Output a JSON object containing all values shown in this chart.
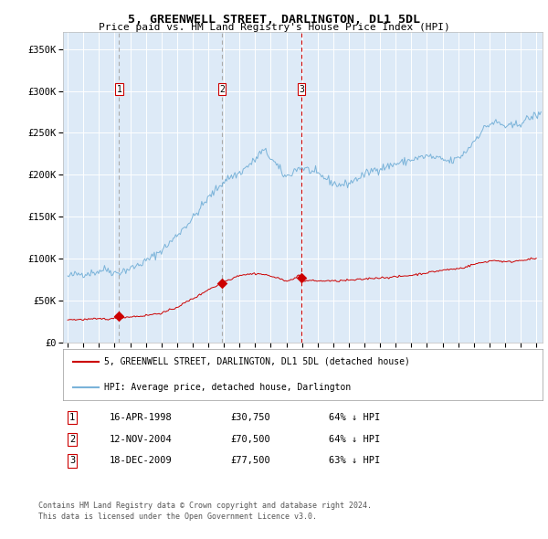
{
  "title": "5, GREENWELL STREET, DARLINGTON, DL1 5DL",
  "subtitle": "Price paid vs. HM Land Registry's House Price Index (HPI)",
  "legend_line1": "5, GREENWELL STREET, DARLINGTON, DL1 5DL (detached house)",
  "legend_line2": "HPI: Average price, detached house, Darlington",
  "footer1": "Contains HM Land Registry data © Crown copyright and database right 2024.",
  "footer2": "This data is licensed under the Open Government Licence v3.0.",
  "transactions": [
    {
      "num": 1,
      "date": "16-APR-1998",
      "price": 30750,
      "pct": "64%",
      "dir": "↓",
      "year": 1998.29
    },
    {
      "num": 2,
      "date": "12-NOV-2004",
      "price": 70500,
      "pct": "64%",
      "dir": "↓",
      "year": 2004.87
    },
    {
      "num": 3,
      "date": "18-DEC-2009",
      "price": 77500,
      "pct": "63%",
      "dir": "↓",
      "year": 2009.96
    }
  ],
  "hpi_color": "#7ab3d9",
  "price_color": "#cc0000",
  "bg_color": "#ddeaf7",
  "grid_color": "#ffffff",
  "ylim": [
    0,
    370000
  ],
  "xlim_start": 1994.7,
  "xlim_end": 2025.4,
  "yticks": [
    0,
    50000,
    100000,
    150000,
    200000,
    250000,
    300000,
    350000
  ],
  "ytick_labels": [
    "£0",
    "£50K",
    "£100K",
    "£150K",
    "£200K",
    "£250K",
    "£300K",
    "£350K"
  ],
  "xticks": [
    1995,
    1996,
    1997,
    1998,
    1999,
    2000,
    2001,
    2002,
    2003,
    2004,
    2005,
    2006,
    2007,
    2008,
    2009,
    2010,
    2011,
    2012,
    2013,
    2014,
    2015,
    2016,
    2017,
    2018,
    2019,
    2020,
    2021,
    2022,
    2023,
    2024,
    2025
  ]
}
